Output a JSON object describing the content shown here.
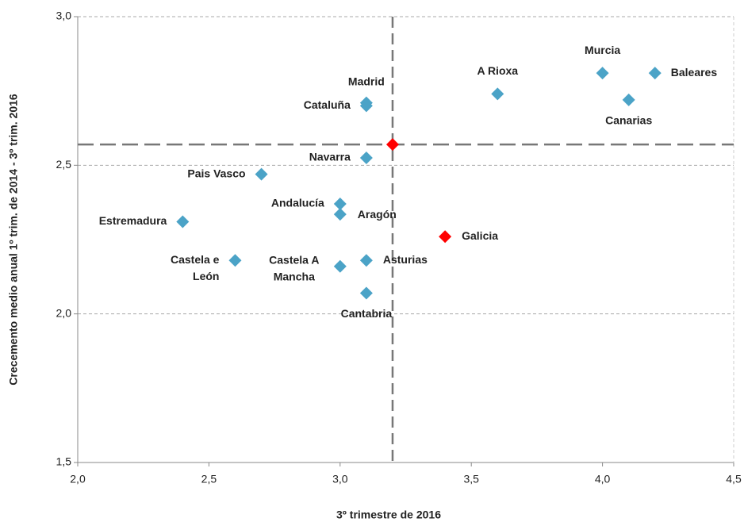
{
  "chart_data": {
    "type": "scatter",
    "x_label": "3º trimestre de 2016",
    "y_label": "Crecemento medio anual 1º trim. de 2014 - 3º trim. 2016",
    "labels": [
      "Madrid",
      "Cataluña",
      "Navarra",
      "Pais Vasco",
      "Andalucía",
      "Aragón",
      "Estremadura",
      "Castela e León",
      "Castela A Mancha",
      "Asturias",
      "Cantabria",
      "Galicia",
      null,
      "A Rioxa",
      "Murcia",
      "Baleares",
      "Canarias"
    ],
    "x": [
      3.1,
      3.1,
      3.1,
      2.7,
      3.0,
      3.0,
      2.4,
      2.6,
      3.0,
      3.1,
      3.1,
      3.4,
      3.2,
      3.6,
      4.0,
      4.2,
      4.1
    ],
    "y": [
      2.71,
      2.7,
      2.525,
      2.47,
      2.37,
      2.335,
      2.31,
      2.18,
      2.16,
      2.18,
      2.07,
      2.26,
      2.57,
      2.74,
      2.81,
      2.81,
      2.72
    ],
    "colors": [
      "#4ba3c7",
      "#4ba3c7",
      "#4ba3c7",
      "#4ba3c7",
      "#4ba3c7",
      "#4ba3c7",
      "#4ba3c7",
      "#4ba3c7",
      "#4ba3c7",
      "#4ba3c7",
      "#4ba3c7",
      "#ff0000",
      "#ff0000",
      "#4ba3c7",
      "#4ba3c7",
      "#4ba3c7",
      "#4ba3c7"
    ],
    "reference_x": 3.2,
    "reference_y": 2.57,
    "xlim": [
      2.0,
      4.5
    ],
    "xticks": [
      {
        "value": 2.0,
        "label": "2,0"
      },
      {
        "value": 2.5,
        "label": "2,5"
      },
      {
        "value": 3.0,
        "label": "3,0"
      },
      {
        "value": 3.5,
        "label": "3,5"
      },
      {
        "value": 4.0,
        "label": "4,0"
      },
      {
        "value": 4.5,
        "label": "4,5"
      }
    ],
    "ylim": [
      1.5,
      3.0
    ],
    "yticks": [
      {
        "value": 1.5,
        "label": "1,5"
      },
      {
        "value": 2.0,
        "label": "2,0"
      },
      {
        "value": 2.5,
        "label": "2,5"
      },
      {
        "value": 3.0,
        "label": "3,0"
      }
    ],
    "grid": true
  }
}
